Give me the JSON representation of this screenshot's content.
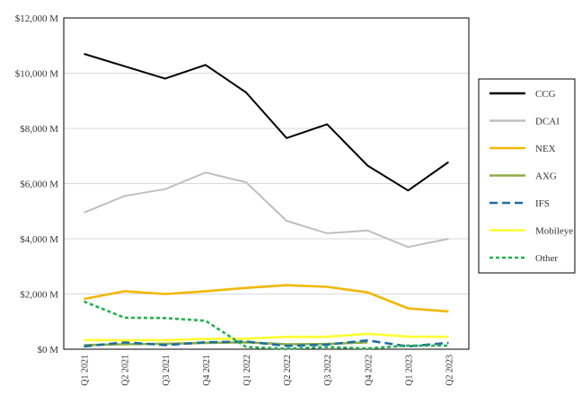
{
  "chart_data": {
    "type": "line",
    "title": "",
    "xlabel": "",
    "ylabel": "",
    "categories": [
      "Q1 2021",
      "Q2 2021",
      "Q3 2021",
      "Q4 2021",
      "Q1 2022",
      "Q2 2022",
      "Q3 2022",
      "Q4 2022",
      "Q1 2023",
      "Q2 2023"
    ],
    "ylim": [
      0,
      12000
    ],
    "yticks": [
      0,
      2000,
      4000,
      6000,
      8000,
      10000,
      12000
    ],
    "ytick_labels": [
      "$0 M",
      "$2,000 M",
      "$4,000 M",
      "$6,000 M",
      "$8,000 M",
      "$10,000 M",
      "$12,000 M"
    ],
    "grid": "horizontal",
    "legend_position": "right",
    "series": [
      {
        "name": "CCG",
        "color": "#000000",
        "dash": "solid",
        "values": [
          10700,
          10250,
          9800,
          10300,
          9300,
          7650,
          8150,
          6650,
          5750,
          6780
        ]
      },
      {
        "name": "DCAI",
        "color": "#bfbfbf",
        "dash": "solid",
        "values": [
          4950,
          5550,
          5800,
          6400,
          6050,
          4650,
          4200,
          4300,
          3700,
          4000
        ]
      },
      {
        "name": "NEX",
        "color": "#f2b705",
        "dash": "solid",
        "values": [
          1820,
          2100,
          2000,
          2100,
          2220,
          2320,
          2260,
          2060,
          1480,
          1370
        ]
      },
      {
        "name": "AXG",
        "color": "#8fad47",
        "dash": "solid",
        "values": [
          150,
          180,
          200,
          230,
          250,
          180,
          190,
          250,
          null,
          null
        ]
      },
      {
        "name": "IFS",
        "color": "#1f6f9f",
        "dash": "long-dash",
        "values": [
          100,
          250,
          150,
          250,
          280,
          120,
          170,
          320,
          100,
          230
        ]
      },
      {
        "name": "Mobileye",
        "color": "#ffff33",
        "dash": "solid",
        "values": [
          330,
          330,
          330,
          370,
          380,
          450,
          450,
          560,
          460,
          450
        ]
      },
      {
        "name": "Other",
        "color": "#22b14c",
        "dash": "short-dash",
        "values": [
          1730,
          1140,
          1130,
          1030,
          80,
          20,
          80,
          30,
          130,
          130
        ]
      }
    ]
  }
}
